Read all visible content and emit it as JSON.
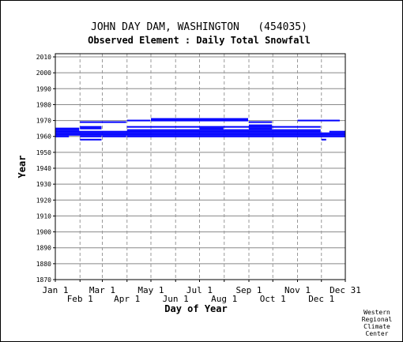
{
  "chart_data": {
    "type": "bar",
    "title": "JOHN DAY DAM, WASHINGTON   (454035)",
    "subtitle": "Observed Element : Daily Total Snowfall",
    "xlabel": "Day of Year",
    "ylabel": "Year",
    "xlim": [
      1,
      365
    ],
    "ylim": [
      1870,
      2012
    ],
    "grid": true,
    "x_ticks_top_row": [
      {
        "label": "Jan 1",
        "day": 1
      },
      {
        "label": "Mar 1",
        "day": 60
      },
      {
        "label": "May 1",
        "day": 121
      },
      {
        "label": "Jul 1",
        "day": 182
      },
      {
        "label": "Sep 1",
        "day": 244
      },
      {
        "label": "Nov 1",
        "day": 305
      },
      {
        "label": "Dec 31",
        "day": 365
      }
    ],
    "x_ticks_bottom_row": [
      {
        "label": "Feb 1",
        "day": 32
      },
      {
        "label": "Apr 1",
        "day": 91
      },
      {
        "label": "Jun 1",
        "day": 152
      },
      {
        "label": "Aug 1",
        "day": 213
      },
      {
        "label": "Oct 1",
        "day": 274
      },
      {
        "label": "Dec 1",
        "day": 335
      }
    ],
    "y_ticks": [
      1870,
      1880,
      1890,
      1900,
      1910,
      1920,
      1930,
      1940,
      1950,
      1960,
      1970,
      1980,
      1990,
      2000,
      2010
    ],
    "series_color": "#0000ff",
    "segments": [
      {
        "year": 1960,
        "start": 1,
        "end": 18
      },
      {
        "year": 1960,
        "start": 32,
        "end": 59
      },
      {
        "year": 1960,
        "start": 60,
        "end": 90
      },
      {
        "year": 1960,
        "start": 91,
        "end": 365
      },
      {
        "year": 1961,
        "start": 1,
        "end": 365
      },
      {
        "year": 1962,
        "start": 1,
        "end": 365
      },
      {
        "year": 1963,
        "start": 1,
        "end": 334
      },
      {
        "year": 1963,
        "start": 345,
        "end": 365
      },
      {
        "year": 1964,
        "start": 1,
        "end": 31
      },
      {
        "year": 1964,
        "start": 91,
        "end": 334
      },
      {
        "year": 1965,
        "start": 1,
        "end": 31
      },
      {
        "year": 1965,
        "start": 32,
        "end": 59
      },
      {
        "year": 1965,
        "start": 182,
        "end": 212
      },
      {
        "year": 1965,
        "start": 244,
        "end": 273
      },
      {
        "year": 1966,
        "start": 32,
        "end": 59
      },
      {
        "year": 1966,
        "start": 91,
        "end": 334
      },
      {
        "year": 1967,
        "start": 244,
        "end": 273
      },
      {
        "year": 1958,
        "start": 32,
        "end": 59
      },
      {
        "year": 1958,
        "start": 335,
        "end": 341
      },
      {
        "year": 1969,
        "start": 32,
        "end": 90
      },
      {
        "year": 1969,
        "start": 244,
        "end": 273
      },
      {
        "year": 1970,
        "start": 91,
        "end": 120
      },
      {
        "year": 1970,
        "start": 121,
        "end": 243
      },
      {
        "year": 1970,
        "start": 305,
        "end": 358
      },
      {
        "year": 1971,
        "start": 121,
        "end": 243
      }
    ]
  },
  "credit": {
    "line1": "Western",
    "line2": "Regional",
    "line3": "Climate",
    "line4": "Center"
  }
}
